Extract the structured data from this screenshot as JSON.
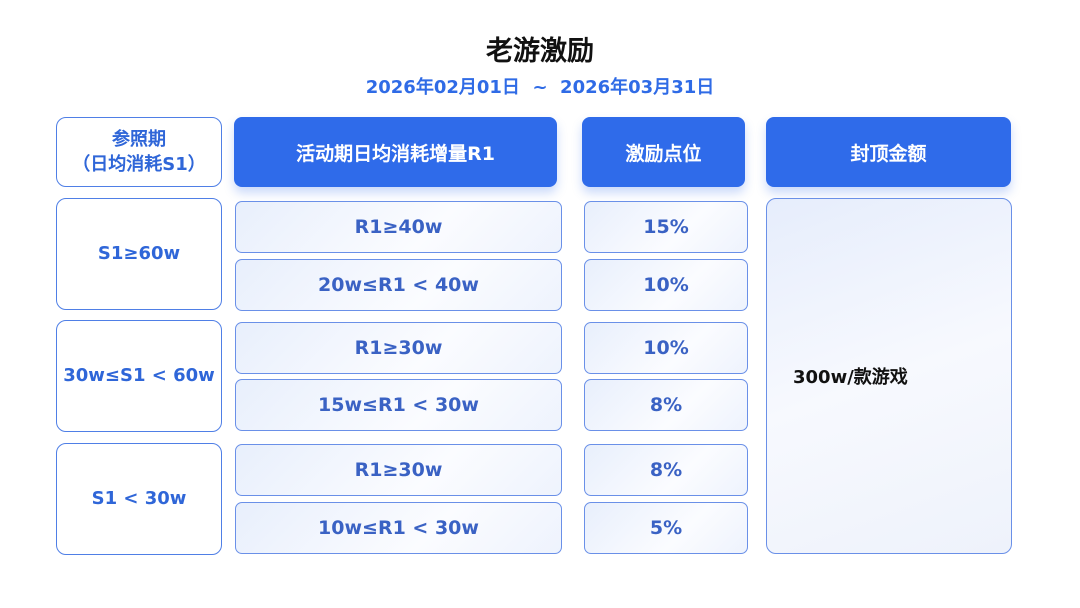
{
  "title": "老游激励",
  "date_range": "2026年02月01日  ~  2026年03月31日",
  "headers": {
    "ref_line1": "参照期",
    "ref_line2": "（日均消耗S1）",
    "r1": "活动期日均消耗增量R1",
    "rate": "激励点位",
    "cap": "封顶金额"
  },
  "groups": [
    {
      "s1": "S1≥60w",
      "rows": [
        {
          "r1": "R1≥40w",
          "rate": "15%"
        },
        {
          "r1": "20w≤R1 < 40w",
          "rate": "10%"
        }
      ]
    },
    {
      "s1": "30w≤S1 < 60w",
      "rows": [
        {
          "r1": "R1≥30w",
          "rate": "10%"
        },
        {
          "r1": "15w≤R1 < 30w",
          "rate": "8%"
        }
      ]
    },
    {
      "s1": "S1 < 30w",
      "rows": [
        {
          "r1": "R1≥30w",
          "rate": "8%"
        },
        {
          "r1": "10w≤R1 < 30w",
          "rate": "5%"
        }
      ]
    }
  ],
  "cap_value": "300w/款游戏",
  "colors": {
    "header": "#2f6bea",
    "text": "#2f66d8"
  }
}
